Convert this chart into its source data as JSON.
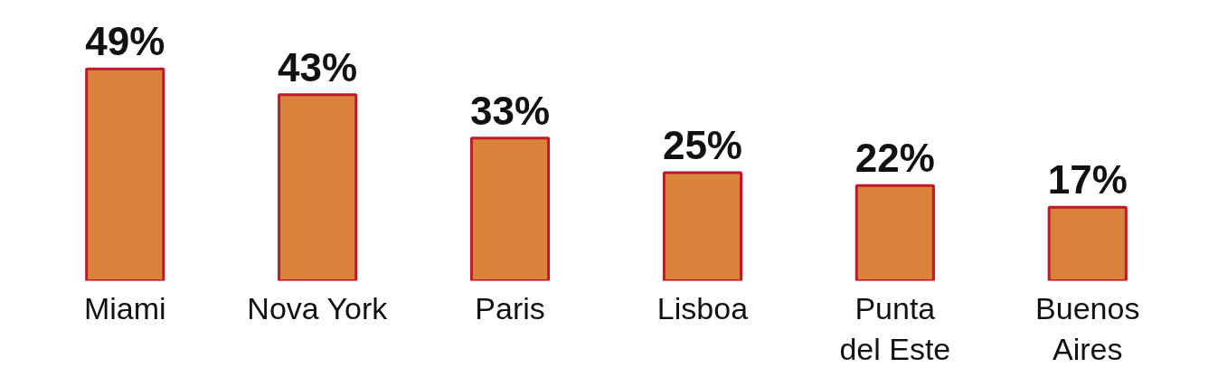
{
  "chart_data": {
    "type": "bar",
    "categories": [
      "Miami",
      "Nova York",
      "Paris",
      "Lisboa",
      "Punta del Este",
      "Buenos Aires"
    ],
    "values": [
      49,
      43,
      33,
      25,
      22,
      17
    ],
    "color": "#d9843a",
    "data_labels": true,
    "value_labels": [
      "49%",
      "43%",
      "33%",
      "25%",
      "22%",
      "17%"
    ],
    "grid": false
  }
}
